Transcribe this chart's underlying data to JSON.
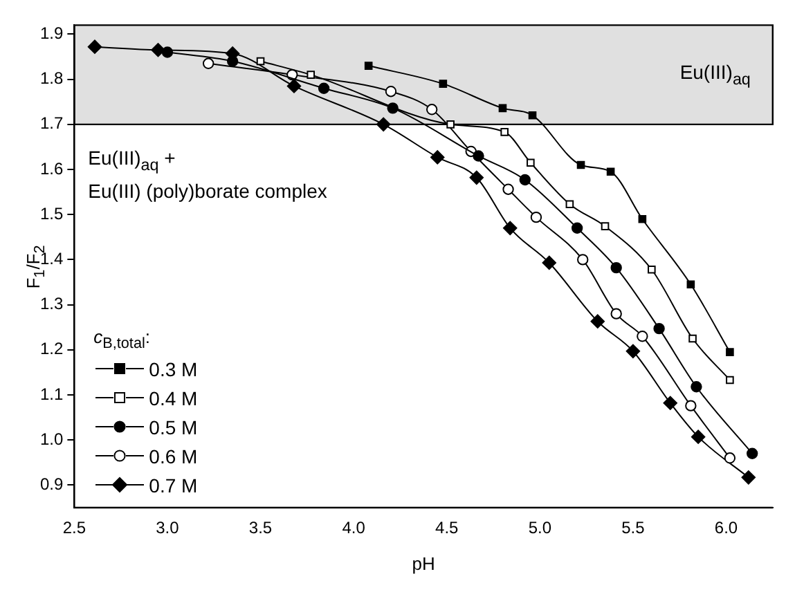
{
  "chart_data": {
    "type": "line",
    "xlabel": "pH",
    "ylabel": "F$_{1}$/F$_{2}$",
    "legend_title": "c$_{B,total}$:",
    "legend": "bottom left",
    "grid": false,
    "line_style": "solid",
    "xlim": [
      2.5,
      6.25
    ],
    "ylim": [
      0.85,
      1.92
    ],
    "xticks": [
      2.5,
      {
        "value": 3,
        "label": "3.0"
      },
      3.5,
      {
        "value": 4,
        "label": "4.0"
      },
      4.5,
      {
        "value": 5,
        "label": "5.0"
      },
      5.5,
      {
        "value": 6,
        "label": "6.0"
      }
    ],
    "yticks": [
      0.9,
      {
        "value": 1,
        "label": "1.0"
      },
      1.1,
      1.2,
      1.3,
      1.4,
      1.5,
      1.6,
      1.7,
      1.8,
      1.9
    ],
    "bands": [
      {
        "axis": "y",
        "from": 1.7,
        "to": 1.92,
        "label": "Eu(III)$_{aq}$",
        "color": "#e0e0e0"
      }
    ],
    "annotations": [
      "Eu(III)$_{aq}$ +",
      "Eu(III) (poly)borate complex"
    ],
    "series": [
      {
        "name": "0.3 M",
        "color": "#000000",
        "marker": "square",
        "x": [
          4.08,
          4.48,
          4.8,
          4.96,
          5.22,
          5.38,
          5.55,
          5.81,
          6.02
        ],
        "values": [
          1.83,
          1.79,
          1.736,
          1.72,
          1.61,
          1.595,
          1.49,
          1.345,
          1.195
        ]
      },
      {
        "name": "0.4 M",
        "color": "#000000",
        "marker": "square-open",
        "x": [
          3.5,
          3.77,
          4.52,
          4.81,
          4.95,
          5.16,
          5.35,
          5.6,
          5.82,
          6.02
        ],
        "values": [
          1.84,
          1.81,
          1.7,
          1.683,
          1.615,
          1.523,
          1.474,
          1.378,
          1.225,
          1.133
        ]
      },
      {
        "name": "0.5 M",
        "color": "#000000",
        "marker": "circle",
        "x": [
          3.0,
          3.35,
          3.84,
          4.21,
          4.67,
          4.92,
          5.2,
          5.41,
          5.64,
          5.84,
          6.14
        ],
        "values": [
          1.86,
          1.84,
          1.78,
          1.736,
          1.63,
          1.577,
          1.47,
          1.382,
          1.247,
          1.118,
          0.97
        ]
      },
      {
        "name": "0.6 M",
        "color": "#000000",
        "marker": "circle-open",
        "x": [
          3.22,
          3.67,
          4.2,
          4.42,
          4.63,
          4.83,
          4.98,
          5.23,
          5.41,
          5.55,
          5.81,
          6.02
        ],
        "values": [
          1.835,
          1.81,
          1.773,
          1.733,
          1.64,
          1.556,
          1.494,
          1.4,
          1.28,
          1.23,
          1.076,
          0.96
        ]
      },
      {
        "name": "0.7 M",
        "color": "#000000",
        "marker": "diamond",
        "x": [
          2.61,
          2.95,
          3.35,
          3.68,
          4.16,
          4.45,
          4.66,
          4.84,
          5.05,
          5.31,
          5.5,
          5.7,
          5.85,
          6.12
        ],
        "values": [
          1.872,
          1.865,
          1.857,
          1.785,
          1.7,
          1.627,
          1.582,
          1.47,
          1.393,
          1.263,
          1.197,
          1.082,
          1.007,
          0.917
        ]
      }
    ]
  }
}
